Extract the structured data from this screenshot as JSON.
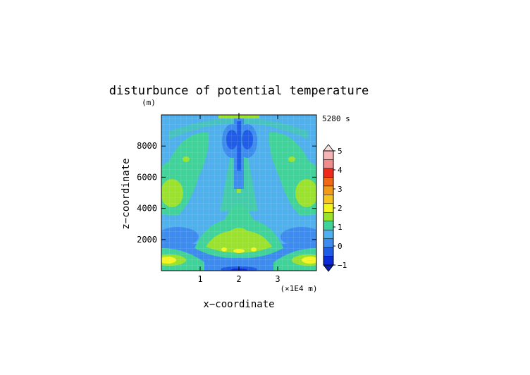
{
  "chart_data": {
    "type": "heatmap",
    "title": "disturbunce of potential temperature",
    "time_label": "5280 s",
    "xlabel": "x−coordinate",
    "ylabel": "z−coordinate",
    "x_unit_label": "(×1E4 m)",
    "y_unit_label": "(m)",
    "xlim": [
      0,
      4
    ],
    "ylim": [
      0,
      10000
    ],
    "x_ticks": [
      {
        "value": 1,
        "label": "1"
      },
      {
        "value": 2,
        "label": "2"
      },
      {
        "value": 3,
        "label": "3"
      }
    ],
    "y_ticks": [
      {
        "value": 2000,
        "label": "2000"
      },
      {
        "value": 4000,
        "label": "4000"
      },
      {
        "value": 6000,
        "label": "6000"
      },
      {
        "value": 8000,
        "label": "8000"
      }
    ],
    "colorbar": {
      "levels": [
        -1,
        -0.5,
        0,
        0.5,
        1,
        1.5,
        2,
        2.5,
        3,
        3.5,
        4,
        4.5,
        5
      ],
      "labels": [
        "-1",
        "0",
        "1",
        "2",
        "3",
        "4",
        "5"
      ],
      "colors": [
        "#0a2bd6",
        "#1f5ce8",
        "#3c8cf0",
        "#4fb0ee",
        "#3fd39a",
        "#9be22c",
        "#f4f41e",
        "#f7c31e",
        "#f49a1a",
        "#f06a16",
        "#ee2a1a",
        "#f28c8c",
        "#f7b4b4"
      ]
    },
    "field_features": [
      {
        "x": 0.15,
        "z": 450,
        "value": 2.2,
        "note": "warm core near ground left"
      },
      {
        "x": 3.85,
        "z": 450,
        "value": 2.2,
        "note": "warm core near ground right"
      },
      {
        "x": 2.0,
        "z": 1800,
        "value": 1.6,
        "note": "central warm lobe"
      },
      {
        "x": 0.6,
        "z": 6800,
        "value": 1.5,
        "note": "upper left warm region"
      },
      {
        "x": 3.4,
        "z": 6800,
        "value": 1.5,
        "note": "upper right warm region"
      },
      {
        "x": 2.0,
        "z": 8500,
        "value": -1.0,
        "note": "central cold column"
      },
      {
        "x": 2.0,
        "z": 100,
        "value": -1.0,
        "note": "cold near ground centre"
      }
    ]
  }
}
